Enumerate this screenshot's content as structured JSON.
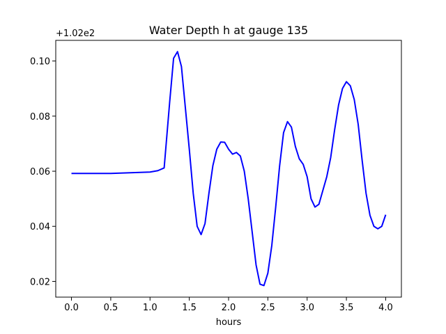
{
  "chart_data": {
    "type": "line",
    "title": "Water Depth h at gauge 135",
    "xlabel": "hours",
    "ylabel": "",
    "y_offset_label": "+1.02e2",
    "xlim": [
      -0.2,
      4.2
    ],
    "ylim": [
      0.0143,
      0.1075
    ],
    "x_ticks": [
      0.0,
      0.5,
      1.0,
      1.5,
      2.0,
      2.5,
      3.0,
      3.5,
      4.0
    ],
    "x_tick_labels": [
      "0.0",
      "0.5",
      "1.0",
      "1.5",
      "2.0",
      "2.5",
      "3.0",
      "3.5",
      "4.0"
    ],
    "y_ticks": [
      0.02,
      0.04,
      0.06,
      0.08,
      0.1
    ],
    "y_tick_labels": [
      "0.02",
      "0.04",
      "0.06",
      "0.08",
      "0.10"
    ],
    "grid": false,
    "series": [
      {
        "color": "#0000ff",
        "x": [
          0.0,
          0.5,
          1.0,
          1.1,
          1.18,
          1.25,
          1.3,
          1.35,
          1.4,
          1.45,
          1.5,
          1.55,
          1.6,
          1.65,
          1.7,
          1.75,
          1.8,
          1.85,
          1.9,
          1.95,
          2.0,
          2.05,
          2.1,
          2.15,
          2.2,
          2.25,
          2.3,
          2.35,
          2.4,
          2.45,
          2.5,
          2.55,
          2.6,
          2.65,
          2.7,
          2.75,
          2.8,
          2.85,
          2.9,
          2.95,
          3.0,
          3.05,
          3.1,
          3.15,
          3.2,
          3.25,
          3.3,
          3.35,
          3.4,
          3.45,
          3.5,
          3.55,
          3.6,
          3.65,
          3.7,
          3.75,
          3.8,
          3.85,
          3.9,
          3.95,
          4.0
        ],
        "y": [
          0.0592,
          0.0592,
          0.0597,
          0.0602,
          0.0612,
          0.085,
          0.101,
          0.1034,
          0.098,
          0.083,
          0.068,
          0.052,
          0.04,
          0.037,
          0.041,
          0.052,
          0.062,
          0.068,
          0.0706,
          0.0705,
          0.068,
          0.0662,
          0.0668,
          0.0655,
          0.06,
          0.05,
          0.038,
          0.026,
          0.019,
          0.0185,
          0.023,
          0.033,
          0.047,
          0.062,
          0.074,
          0.078,
          0.076,
          0.069,
          0.0645,
          0.0625,
          0.058,
          0.05,
          0.047,
          0.048,
          0.053,
          0.058,
          0.065,
          0.075,
          0.084,
          0.09,
          0.0925,
          0.091,
          0.086,
          0.077,
          0.064,
          0.052,
          0.044,
          0.04,
          0.0391,
          0.04,
          0.0442
        ]
      }
    ]
  }
}
